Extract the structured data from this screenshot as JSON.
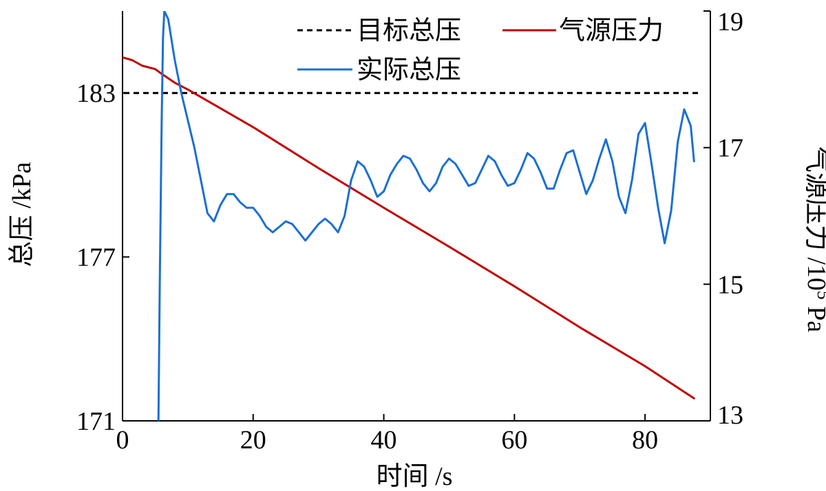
{
  "chart_data": {
    "type": "line",
    "xlabel": "时间 /s",
    "ylabel_left": "总压 /kPa",
    "ylabel_right_main": "气源压力 /10",
    "ylabel_right_sup": "5",
    "ylabel_right_unit": " Pa",
    "xlim": [
      0,
      90
    ],
    "ylim_left": [
      171,
      186
    ],
    "ylim_right": [
      13,
      19
    ],
    "x_ticks": [
      "0",
      "20",
      "40",
      "60",
      "80"
    ],
    "y_left_ticks": [
      "171",
      "177",
      "183"
    ],
    "y_right_ticks": [
      "13",
      "15",
      "17",
      "19"
    ],
    "legend": {
      "target": "目标总压",
      "source": "气源压力",
      "actual": "实际总压"
    },
    "colors": {
      "target": "#000000",
      "source": "#c00000",
      "actual": "#1a6fd4"
    },
    "series": [
      {
        "key": "target",
        "name": "目标总压",
        "axis": "left",
        "style": "dashed",
        "x": [
          0,
          90
        ],
        "y": [
          183,
          183
        ]
      },
      {
        "key": "source",
        "name": "气源压力",
        "axis": "right",
        "style": "solid",
        "x": [
          0,
          1.5,
          3,
          5,
          6,
          8,
          10,
          20,
          30,
          40,
          50,
          60,
          70,
          80,
          87.5
        ],
        "y": [
          18.32,
          18.28,
          18.2,
          18.15,
          18.08,
          17.95,
          17.85,
          17.3,
          16.7,
          16.12,
          15.55,
          14.97,
          14.37,
          13.8,
          13.33
        ]
      },
      {
        "key": "actual",
        "name": "实际总压",
        "axis": "left",
        "style": "solid",
        "x": [
          5.5,
          5.7,
          6.0,
          6.2,
          6.4,
          7.0,
          8.0,
          9.0,
          10.0,
          11.0,
          12.0,
          13.0,
          14.0,
          15.0,
          16.0,
          17.0,
          18.0,
          19.0,
          20.0,
          21.0,
          22.0,
          23.0,
          24.0,
          25.0,
          26.0,
          27.0,
          28.0,
          29.0,
          30.0,
          31.0,
          32.0,
          33.0,
          34.0,
          35.0,
          36.0,
          37.0,
          38.0,
          39.0,
          40.0,
          41.0,
          42.0,
          43.0,
          44.0,
          45.0,
          46.0,
          47.0,
          48.0,
          49.0,
          50.0,
          51.0,
          52.0,
          53.0,
          54.0,
          55.0,
          56.0,
          57.0,
          58.0,
          59.0,
          60.0,
          61.0,
          62.0,
          63.0,
          64.0,
          65.0,
          66.0,
          67.0,
          68.0,
          69.0,
          70.0,
          71.0,
          72.0,
          73.0,
          74.0,
          75.0,
          76.0,
          77.0,
          78.0,
          79.0,
          80.0,
          81.0,
          82.0,
          83.0,
          84.0,
          85.0,
          86.0,
          87.0,
          87.5
        ],
        "y": [
          171,
          176,
          182,
          185,
          186,
          185.7,
          184.2,
          183.0,
          182.0,
          181.0,
          179.8,
          178.6,
          178.3,
          178.9,
          179.3,
          179.3,
          179.0,
          178.8,
          178.8,
          178.5,
          178.1,
          177.9,
          178.1,
          178.3,
          178.2,
          177.9,
          177.6,
          177.9,
          178.2,
          178.4,
          178.2,
          177.9,
          178.5,
          179.8,
          180.5,
          180.3,
          179.8,
          179.2,
          179.4,
          180.0,
          180.4,
          180.7,
          180.6,
          180.2,
          179.7,
          179.4,
          179.7,
          180.3,
          180.6,
          180.4,
          180.0,
          179.6,
          179.7,
          180.2,
          180.7,
          180.5,
          180.0,
          179.6,
          179.7,
          180.2,
          180.8,
          180.6,
          180.1,
          179.5,
          179.5,
          180.2,
          180.8,
          180.9,
          180.1,
          179.3,
          179.8,
          180.6,
          181.3,
          180.5,
          179.2,
          178.6,
          179.8,
          181.5,
          181.9,
          180.4,
          178.8,
          177.5,
          178.7,
          181.2,
          182.4,
          181.8,
          180.5
        ]
      }
    ]
  }
}
